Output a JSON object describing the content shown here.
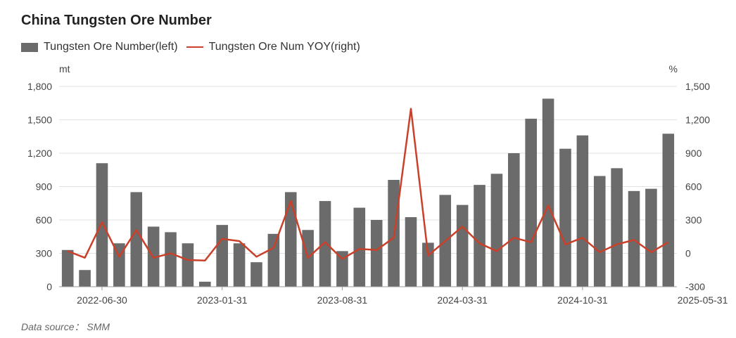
{
  "title": "China Tungsten Ore Number",
  "source": "Data source： SMM",
  "colors": {
    "bars": "#6b6b6b",
    "line": "#c9402b",
    "grid": "#e2e2e2",
    "axis": "#999999"
  },
  "chart_data": {
    "type": "bar",
    "title": "China Tungsten Ore Number",
    "left_axis_unit": "mt",
    "right_axis_unit": "%",
    "ylim_left": [
      0,
      1800
    ],
    "ylim_right": [
      -300,
      1500
    ],
    "left_ticks": [
      "0",
      "300",
      "600",
      "900",
      "1,200",
      "1,500",
      "1,800"
    ],
    "right_ticks": [
      "-300",
      "0",
      "300",
      "600",
      "900",
      "1,200",
      "1,500"
    ],
    "x_tick_labels": [
      {
        "index": 2,
        "label": "2022-06-30"
      },
      {
        "index": 9,
        "label": "2023-01-31"
      },
      {
        "index": 16,
        "label": "2023-08-31"
      },
      {
        "index": 23,
        "label": "2024-03-31"
      },
      {
        "index": 30,
        "label": "2024-10-31"
      },
      {
        "index": 37,
        "label": "2025-05-31"
      }
    ],
    "grid": true,
    "legend_position": "top-left",
    "series": [
      {
        "name": "Tungsten Ore Number(left)",
        "type": "bar",
        "axis": "left",
        "values": [
          330,
          150,
          1110,
          390,
          850,
          540,
          490,
          390,
          45,
          555,
          390,
          220,
          475,
          850,
          510,
          770,
          320,
          710,
          600,
          960,
          625,
          395,
          825,
          735,
          915,
          1015,
          1200,
          1510,
          1690,
          1240,
          1360,
          995,
          1065,
          860,
          880,
          1375
        ]
      },
      {
        "name": "Tungsten Ore Num YOY(right)",
        "type": "line",
        "axis": "right",
        "values": [
          20,
          -40,
          280,
          -30,
          210,
          -40,
          0,
          -60,
          -65,
          130,
          110,
          -30,
          50,
          470,
          -40,
          100,
          -50,
          40,
          30,
          140,
          1300,
          -20,
          110,
          240,
          90,
          20,
          140,
          100,
          430,
          80,
          140,
          10,
          80,
          120,
          10,
          100
        ]
      }
    ]
  }
}
